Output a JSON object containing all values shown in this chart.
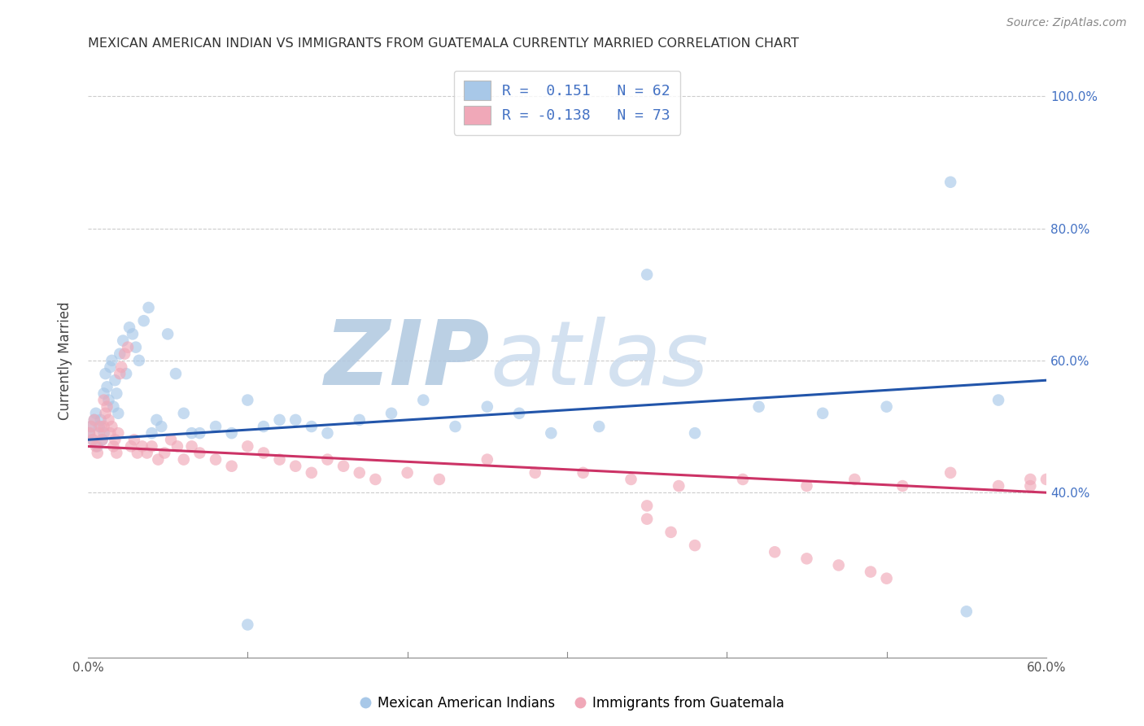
{
  "title": "MEXICAN AMERICAN INDIAN VS IMMIGRANTS FROM GUATEMALA CURRENTLY MARRIED CORRELATION CHART",
  "source": "Source: ZipAtlas.com",
  "ylabel": "Currently Married",
  "xlim": [
    0.0,
    0.6
  ],
  "ylim": [
    0.15,
    1.05
  ],
  "xticklabels": [
    "0.0%",
    "",
    "",
    "",
    "",
    "",
    "60.0%"
  ],
  "yticks": [
    0.4,
    0.6,
    0.8,
    1.0
  ],
  "yticklabels": [
    "40.0%",
    "60.0%",
    "80.0%",
    "100.0%"
  ],
  "dot_color_blue": "#a8c8e8",
  "dot_color_pink": "#f0a8b8",
  "line_color_blue": "#2255aa",
  "line_color_pink": "#cc3366",
  "background_color": "#ffffff",
  "watermark_text": "ZIPatlas",
  "watermark_color": "#ccdcee",
  "blue_line_x0": 0.0,
  "blue_line_y0": 0.48,
  "blue_line_x1": 0.6,
  "blue_line_y1": 0.57,
  "pink_line_x0": 0.0,
  "pink_line_y0": 0.47,
  "pink_line_x1": 0.6,
  "pink_line_y1": 0.4,
  "blue_x": [
    0.001,
    0.002,
    0.003,
    0.004,
    0.005,
    0.006,
    0.007,
    0.008,
    0.009,
    0.01,
    0.01,
    0.011,
    0.012,
    0.013,
    0.014,
    0.015,
    0.016,
    0.017,
    0.018,
    0.019,
    0.02,
    0.022,
    0.024,
    0.026,
    0.028,
    0.03,
    0.032,
    0.035,
    0.038,
    0.04,
    0.043,
    0.046,
    0.05,
    0.055,
    0.06,
    0.065,
    0.07,
    0.08,
    0.09,
    0.1,
    0.11,
    0.12,
    0.13,
    0.14,
    0.15,
    0.17,
    0.19,
    0.21,
    0.23,
    0.25,
    0.27,
    0.29,
    0.32,
    0.35,
    0.38,
    0.42,
    0.46,
    0.5,
    0.54,
    0.57,
    0.1,
    0.55
  ],
  "blue_y": [
    0.49,
    0.5,
    0.48,
    0.51,
    0.52,
    0.47,
    0.5,
    0.51,
    0.48,
    0.49,
    0.55,
    0.58,
    0.56,
    0.54,
    0.59,
    0.6,
    0.53,
    0.57,
    0.55,
    0.52,
    0.61,
    0.63,
    0.58,
    0.65,
    0.64,
    0.62,
    0.6,
    0.66,
    0.68,
    0.49,
    0.51,
    0.5,
    0.64,
    0.58,
    0.52,
    0.49,
    0.49,
    0.5,
    0.49,
    0.54,
    0.5,
    0.51,
    0.51,
    0.5,
    0.49,
    0.51,
    0.52,
    0.54,
    0.5,
    0.53,
    0.52,
    0.49,
    0.5,
    0.73,
    0.49,
    0.53,
    0.52,
    0.53,
    0.87,
    0.54,
    0.2,
    0.22
  ],
  "pink_x": [
    0.001,
    0.002,
    0.003,
    0.004,
    0.005,
    0.006,
    0.007,
    0.008,
    0.009,
    0.01,
    0.01,
    0.011,
    0.012,
    0.013,
    0.014,
    0.015,
    0.016,
    0.017,
    0.018,
    0.019,
    0.02,
    0.021,
    0.023,
    0.025,
    0.027,
    0.029,
    0.031,
    0.034,
    0.037,
    0.04,
    0.044,
    0.048,
    0.052,
    0.056,
    0.06,
    0.065,
    0.07,
    0.08,
    0.09,
    0.1,
    0.11,
    0.12,
    0.13,
    0.14,
    0.15,
    0.16,
    0.17,
    0.18,
    0.2,
    0.22,
    0.25,
    0.28,
    0.31,
    0.34,
    0.37,
    0.41,
    0.45,
    0.48,
    0.51,
    0.54,
    0.57,
    0.59,
    0.6,
    0.35,
    0.35,
    0.365,
    0.38,
    0.43,
    0.45,
    0.47,
    0.49,
    0.5,
    0.59
  ],
  "pink_y": [
    0.49,
    0.5,
    0.48,
    0.51,
    0.47,
    0.46,
    0.49,
    0.5,
    0.48,
    0.5,
    0.54,
    0.52,
    0.53,
    0.51,
    0.49,
    0.5,
    0.47,
    0.48,
    0.46,
    0.49,
    0.58,
    0.59,
    0.61,
    0.62,
    0.47,
    0.48,
    0.46,
    0.47,
    0.46,
    0.47,
    0.45,
    0.46,
    0.48,
    0.47,
    0.45,
    0.47,
    0.46,
    0.45,
    0.44,
    0.47,
    0.46,
    0.45,
    0.44,
    0.43,
    0.45,
    0.44,
    0.43,
    0.42,
    0.43,
    0.42,
    0.45,
    0.43,
    0.43,
    0.42,
    0.41,
    0.42,
    0.41,
    0.42,
    0.41,
    0.43,
    0.41,
    0.41,
    0.42,
    0.38,
    0.36,
    0.34,
    0.32,
    0.31,
    0.3,
    0.29,
    0.28,
    0.27,
    0.42
  ]
}
